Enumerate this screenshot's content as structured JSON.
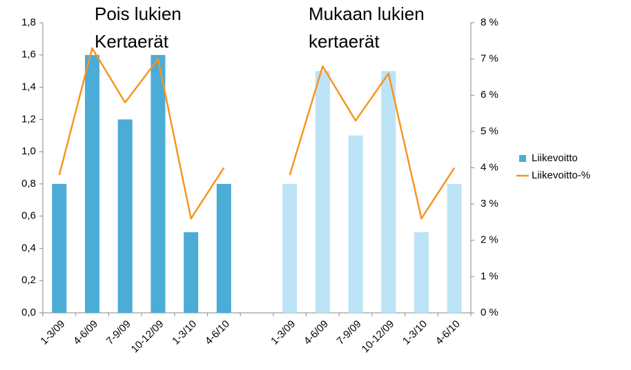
{
  "chart_data": {
    "type": "bar_line",
    "annotations": [
      [
        "Pois lukien",
        "Kertaerät"
      ],
      [
        "Mukaan lukien",
        "kertaerät"
      ]
    ],
    "categories": [
      "1-3/09",
      "4-6/09",
      "7-9/09",
      "10-12/09",
      "1-3/10",
      "4-6/10",
      null,
      "1-3/09",
      "4-6/09",
      "7-9/09",
      "10-12/09",
      "1-3/10",
      "4-6/10"
    ],
    "series": [
      {
        "name": "Liikevoitto",
        "type": "bar",
        "color": "#4bacd6",
        "colors": [
          "#4bacd6",
          "#4bacd6",
          "#4bacd6",
          "#4bacd6",
          "#4bacd6",
          "#4bacd6",
          null,
          "#bde3f7",
          "#bde3f7",
          "#bde3f7",
          "#bde3f7",
          "#bde3f7",
          "#bde3f7"
        ],
        "values": [
          0.8,
          1.6,
          1.2,
          1.6,
          0.5,
          0.8,
          null,
          0.8,
          1.5,
          1.1,
          1.5,
          0.5,
          0.8
        ]
      },
      {
        "name": "Liikevoitto-%",
        "type": "line",
        "color": "#f7941d",
        "axis": "y2",
        "values": [
          3.8,
          7.3,
          5.8,
          7.0,
          2.6,
          4.0,
          null,
          3.8,
          6.8,
          5.3,
          6.6,
          2.6,
          4.0
        ]
      }
    ],
    "ylim": [
      0,
      1.8
    ],
    "yticks": [
      {
        "value": 0,
        "label": "0,0"
      },
      {
        "value": 0.2,
        "label": "0,2"
      },
      {
        "value": 0.4,
        "label": "0,4"
      },
      {
        "value": 0.6,
        "label": "0,6"
      },
      {
        "value": 0.8,
        "label": "0,8"
      },
      {
        "value": 1.0,
        "label": "1,0"
      },
      {
        "value": 1.2,
        "label": "1,2"
      },
      {
        "value": 1.4,
        "label": "1,4"
      },
      {
        "value": 1.6,
        "label": "1,6"
      },
      {
        "value": 1.8,
        "label": "1,8"
      }
    ],
    "y2lim": [
      0,
      8
    ],
    "y2ticks": [
      {
        "value": 0,
        "label": "0 %"
      },
      {
        "value": 1,
        "label": "1 %"
      },
      {
        "value": 2,
        "label": "2 %"
      },
      {
        "value": 3,
        "label": "3 %"
      },
      {
        "value": 4,
        "label": "4 %"
      },
      {
        "value": 5,
        "label": "5 %"
      },
      {
        "value": 6,
        "label": "6 %"
      },
      {
        "value": 7,
        "label": "7 %"
      },
      {
        "value": 8,
        "label": "8 %"
      }
    ],
    "legend": "right"
  }
}
